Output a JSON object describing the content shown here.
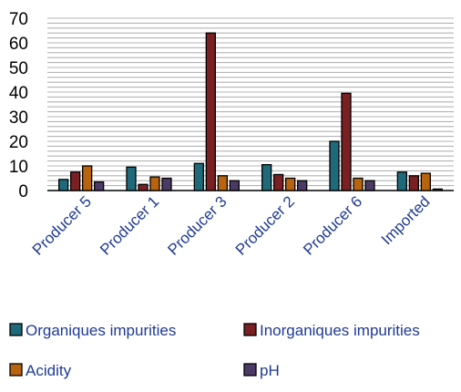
{
  "chart_data": {
    "type": "bar",
    "title": "",
    "xlabel": "",
    "ylabel": "",
    "ylim": [
      0,
      70
    ],
    "yticks": [
      0,
      10,
      20,
      30,
      40,
      50,
      60,
      70
    ],
    "grid": true,
    "legend_position": "bottom",
    "categories": [
      "Producer 5",
      "Producer 1",
      "Producer 3",
      "Producer 2",
      "Producer 6",
      "Imported"
    ],
    "series": [
      {
        "name": "Organiques impurities",
        "color": "#1f6a7a",
        "values": [
          4.5,
          9.5,
          11,
          10.5,
          20,
          7.5
        ]
      },
      {
        "name": "Inorganiques impurities",
        "color": "#7a2022",
        "values": [
          7.5,
          2.5,
          64,
          6.5,
          39.5,
          6
        ]
      },
      {
        "name": "Acidity",
        "color": "#b8640f",
        "values": [
          10,
          5.5,
          6,
          5,
          5,
          7
        ]
      },
      {
        "name": "pH",
        "color": "#4b3a66",
        "values": [
          3.5,
          5,
          4,
          4,
          4,
          0.6
        ]
      }
    ]
  }
}
